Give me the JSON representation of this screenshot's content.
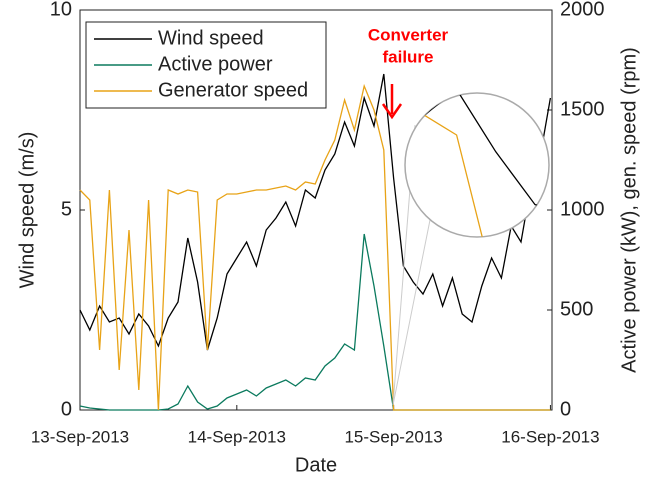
{
  "chart_data": {
    "type": "line",
    "xlabel": "Date",
    "ylabel": "Wind speed (m/s)",
    "y2label": "Active power (kW), gen. speed (rpm)",
    "annotation_lines": [
      "Converter",
      "failure"
    ],
    "annotation_color": "#ff0000",
    "xlim": [
      0,
      3.01
    ],
    "xticks": [
      {
        "value": 0,
        "label": "13-Sep-2013"
      },
      {
        "value": 1,
        "label": "14-Sep-2013"
      },
      {
        "value": 2,
        "label": "15-Sep-2013"
      },
      {
        "value": 3,
        "label": "16-Sep-2013"
      }
    ],
    "ylim": [
      0,
      10
    ],
    "yticks": [
      0,
      5,
      10
    ],
    "y2lim": [
      0,
      2000
    ],
    "y2ticks": [
      0,
      500,
      1000,
      1500,
      2000
    ],
    "legend": "upper left",
    "x": [
      0,
      0.0625,
      0.125,
      0.1875,
      0.25,
      0.3125,
      0.375,
      0.4375,
      0.5,
      0.5625,
      0.625,
      0.6875,
      0.75,
      0.8125,
      0.875,
      0.9375,
      1,
      1.0625,
      1.125,
      1.1875,
      1.25,
      1.3125,
      1.375,
      1.4375,
      1.5,
      1.5625,
      1.625,
      1.6875,
      1.75,
      1.8125,
      1.875,
      1.9375,
      2,
      2.0625,
      2.125,
      2.1875,
      2.25,
      2.3125,
      2.375,
      2.4375,
      2.5,
      2.5625,
      2.625,
      2.6875,
      2.75,
      2.8125,
      2.875,
      2.9375,
      3
    ],
    "series": [
      {
        "name": "Wind speed",
        "color": "#000000",
        "values": [
          2.5,
          2.0,
          2.6,
          2.2,
          2.3,
          1.9,
          2.4,
          2.1,
          1.6,
          2.3,
          2.7,
          4.3,
          3.2,
          1.5,
          2.3,
          3.4,
          3.8,
          4.2,
          3.6,
          4.5,
          4.8,
          5.2,
          4.6,
          5.5,
          5.3,
          6.0,
          6.4,
          7.2,
          6.6,
          7.8,
          7.1,
          8.4,
          5.8,
          3.6,
          3.2,
          2.9,
          3.4,
          2.6,
          3.3,
          2.4,
          2.2,
          3.1,
          3.8,
          3.3,
          4.6,
          4.2,
          5.6,
          6.4,
          7.8
        ]
      },
      {
        "name": "Active power",
        "color": "#0b7a5e",
        "axis": "y2",
        "values": [
          20,
          10,
          5,
          0,
          0,
          0,
          0,
          0,
          0,
          5,
          30,
          120,
          40,
          5,
          20,
          60,
          80,
          100,
          70,
          110,
          130,
          150,
          120,
          160,
          150,
          220,
          260,
          330,
          300,
          880,
          620,
          320,
          0,
          0,
          0,
          0,
          0,
          0,
          0,
          0,
          0,
          0,
          0,
          0,
          0,
          0,
          0,
          0,
          0
        ]
      },
      {
        "name": "Generator speed",
        "color": "#e8a317",
        "axis": "y2",
        "values": [
          1100,
          1050,
          300,
          1100,
          200,
          900,
          100,
          1050,
          0,
          1100,
          1080,
          1100,
          1090,
          300,
          1050,
          1080,
          1080,
          1090,
          1100,
          1100,
          1110,
          1120,
          1100,
          1140,
          1130,
          1250,
          1350,
          1550,
          1400,
          1620,
          1500,
          1300,
          0,
          0,
          0,
          0,
          0,
          0,
          0,
          0,
          0,
          0,
          0,
          0,
          0,
          0,
          0,
          0,
          0
        ]
      }
    ]
  }
}
